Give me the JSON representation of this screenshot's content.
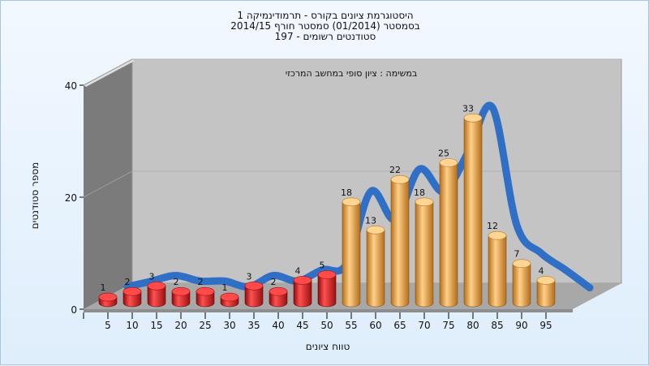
{
  "chart_data": {
    "type": "bar",
    "title_lines": [
      "היסטוגרמת ציונים בקורס - תרמודינמיקה 1",
      "בסמסטר (01/2014) סמסטר חורף 2014/15",
      "197 - סטודנטים רשומים"
    ],
    "annotation": "במשימה : ציון סופי במחשב המרכזי",
    "xlabel": "טווח ציונים",
    "ylabel": "מספר סטודנטים",
    "categories": [
      "5",
      "10",
      "15",
      "20",
      "25",
      "30",
      "35",
      "40",
      "45",
      "50",
      "55",
      "60",
      "65",
      "70",
      "75",
      "80",
      "85",
      "90",
      "95"
    ],
    "values": [
      1,
      2,
      3,
      2,
      2,
      1,
      3,
      2,
      4,
      5,
      18,
      13,
      22,
      18,
      25,
      33,
      12,
      7,
      4
    ],
    "fail_count": 10,
    "ylim": [
      0,
      40
    ],
    "yticks": [
      0,
      20,
      40
    ],
    "trend_line": true,
    "colors": {
      "fail": "#d41e1e",
      "pass": "#e8a548",
      "trend": "#2f6fc6",
      "back_wall": "#c4c4c4",
      "side_wall": "#7b7b7b",
      "floor": "#a8a8a8"
    }
  }
}
